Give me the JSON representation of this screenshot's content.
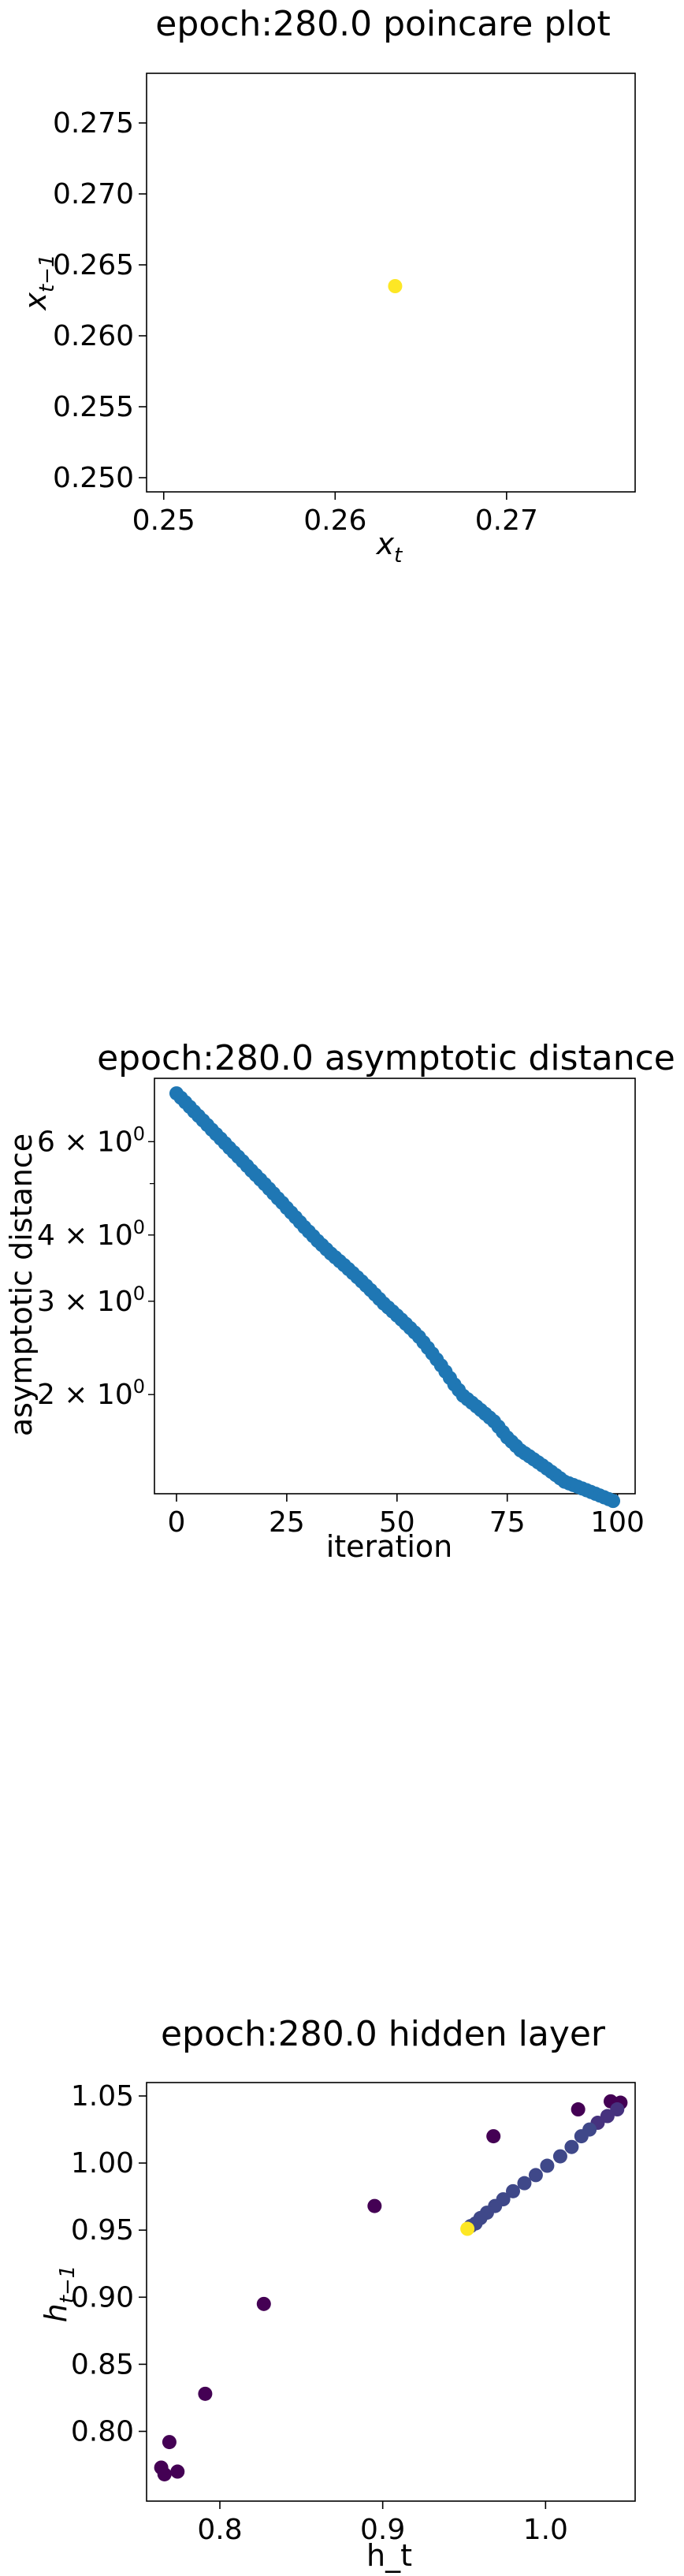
{
  "chart_data": [
    {
      "type": "scatter",
      "title": "epoch:280.0 poincare plot",
      "xlabel": "x_t",
      "ylabel": "x_{t-1}",
      "xlim": [
        0.249,
        0.2775
      ],
      "ylim": [
        0.249,
        0.2785
      ],
      "xticks": [
        0.25,
        0.26,
        0.27
      ],
      "xtick_labels": [
        "0.25",
        "0.26",
        "0.27"
      ],
      "yticks": [
        0.25,
        0.255,
        0.26,
        0.265,
        0.27,
        0.275
      ],
      "ytick_labels": [
        "0.250",
        "0.255",
        "0.260",
        "0.265",
        "0.270",
        "0.275"
      ],
      "points": [
        {
          "x": 0.2635,
          "y": 0.2635,
          "color": "#fde725"
        }
      ],
      "grid": false
    },
    {
      "type": "scatter",
      "title": "epoch:280.0 asymptotic distance",
      "xlabel": "iteration",
      "ylabel": "asymptotic distance",
      "yscale": "log",
      "xlim": [
        -5,
        104
      ],
      "ylim": [
        1.3,
        7.9
      ],
      "xticks": [
        0,
        25,
        50,
        75,
        100
      ],
      "xtick_labels": [
        "0",
        "25",
        "50",
        "75",
        "100"
      ],
      "yticks": [
        2,
        3,
        4,
        6
      ],
      "ytick_labels": [
        "2 × 10⁰",
        "3 × 10⁰",
        "4 × 10⁰",
        "6 × 10⁰"
      ],
      "color": "#1f77b4",
      "series_x_start": 0,
      "series_x_end": 99,
      "values": [
        7.4,
        7.26,
        7.12,
        6.98,
        6.84,
        6.71,
        6.58,
        6.45,
        6.32,
        6.2,
        6.08,
        5.96,
        5.84,
        5.73,
        5.62,
        5.51,
        5.4,
        5.29,
        5.19,
        5.09,
        4.99,
        4.89,
        4.79,
        4.69,
        4.6,
        4.5,
        4.41,
        4.32,
        4.23,
        4.14,
        4.06,
        3.98,
        3.9,
        3.83,
        3.76,
        3.69,
        3.63,
        3.57,
        3.51,
        3.45,
        3.39,
        3.33,
        3.27,
        3.21,
        3.15,
        3.09,
        3.03,
        2.97,
        2.92,
        2.87,
        2.82,
        2.77,
        2.72,
        2.67,
        2.62,
        2.57,
        2.51,
        2.45,
        2.39,
        2.33,
        2.27,
        2.21,
        2.15,
        2.09,
        2.04,
        1.99,
        1.96,
        1.93,
        1.9,
        1.87,
        1.84,
        1.81,
        1.78,
        1.74,
        1.7,
        1.66,
        1.63,
        1.6,
        1.57,
        1.55,
        1.53,
        1.51,
        1.49,
        1.47,
        1.45,
        1.43,
        1.41,
        1.39,
        1.37,
        1.36,
        1.35,
        1.34,
        1.33,
        1.32,
        1.31,
        1.3,
        1.29,
        1.28,
        1.27,
        1.26
      ],
      "grid": false
    },
    {
      "type": "scatter",
      "title": "epoch:280.0 hidden layer",
      "xlabel": "h_t",
      "ylabel": "h_{t-1}",
      "xlim": [
        0.755,
        1.055
      ],
      "ylim": [
        0.748,
        1.06
      ],
      "xticks": [
        0.8,
        0.9,
        1.0
      ],
      "xtick_labels": [
        "0.8",
        "0.9",
        "1.0"
      ],
      "yticks": [
        0.8,
        0.85,
        0.9,
        0.95,
        1.0,
        1.05
      ],
      "ytick_labels": [
        "0.80",
        "0.85",
        "0.90",
        "0.95",
        "1.00",
        "1.05"
      ],
      "points": [
        {
          "x": 0.764,
          "y": 0.773,
          "color": "#440154"
        },
        {
          "x": 0.766,
          "y": 0.768,
          "color": "#440154"
        },
        {
          "x": 0.769,
          "y": 0.792,
          "color": "#440154"
        },
        {
          "x": 0.774,
          "y": 0.77,
          "color": "#440154"
        },
        {
          "x": 0.791,
          "y": 0.828,
          "color": "#440154"
        },
        {
          "x": 0.827,
          "y": 0.895,
          "color": "#440154"
        },
        {
          "x": 0.895,
          "y": 0.968,
          "color": "#440154"
        },
        {
          "x": 0.968,
          "y": 1.02,
          "color": "#440154"
        },
        {
          "x": 1.02,
          "y": 1.04,
          "color": "#440154"
        },
        {
          "x": 1.04,
          "y": 1.046,
          "color": "#440154"
        },
        {
          "x": 1.046,
          "y": 1.045,
          "color": "#440154"
        },
        {
          "x": 1.044,
          "y": 1.04,
          "color": "#46327e"
        },
        {
          "x": 1.038,
          "y": 1.035,
          "color": "#46327e"
        },
        {
          "x": 1.032,
          "y": 1.03,
          "color": "#46327e"
        },
        {
          "x": 1.027,
          "y": 1.025,
          "color": "#3f4889"
        },
        {
          "x": 1.022,
          "y": 1.02,
          "color": "#3f4889"
        },
        {
          "x": 1.016,
          "y": 1.012,
          "color": "#3f4889"
        },
        {
          "x": 1.009,
          "y": 1.005,
          "color": "#3f4889"
        },
        {
          "x": 1.001,
          "y": 0.998,
          "color": "#3f4889"
        },
        {
          "x": 0.994,
          "y": 0.991,
          "color": "#3f4889"
        },
        {
          "x": 0.987,
          "y": 0.985,
          "color": "#3f4889"
        },
        {
          "x": 0.98,
          "y": 0.979,
          "color": "#3f4889"
        },
        {
          "x": 0.974,
          "y": 0.973,
          "color": "#3f4889"
        },
        {
          "x": 0.969,
          "y": 0.968,
          "color": "#3f4889"
        },
        {
          "x": 0.964,
          "y": 0.963,
          "color": "#3f4889"
        },
        {
          "x": 0.96,
          "y": 0.959,
          "color": "#3f4889"
        },
        {
          "x": 0.957,
          "y": 0.955,
          "color": "#3f4889"
        },
        {
          "x": 0.954,
          "y": 0.953,
          "color": "#3f4889"
        },
        {
          "x": 0.952,
          "y": 0.951,
          "color": "#fde725"
        }
      ],
      "grid": false
    }
  ]
}
